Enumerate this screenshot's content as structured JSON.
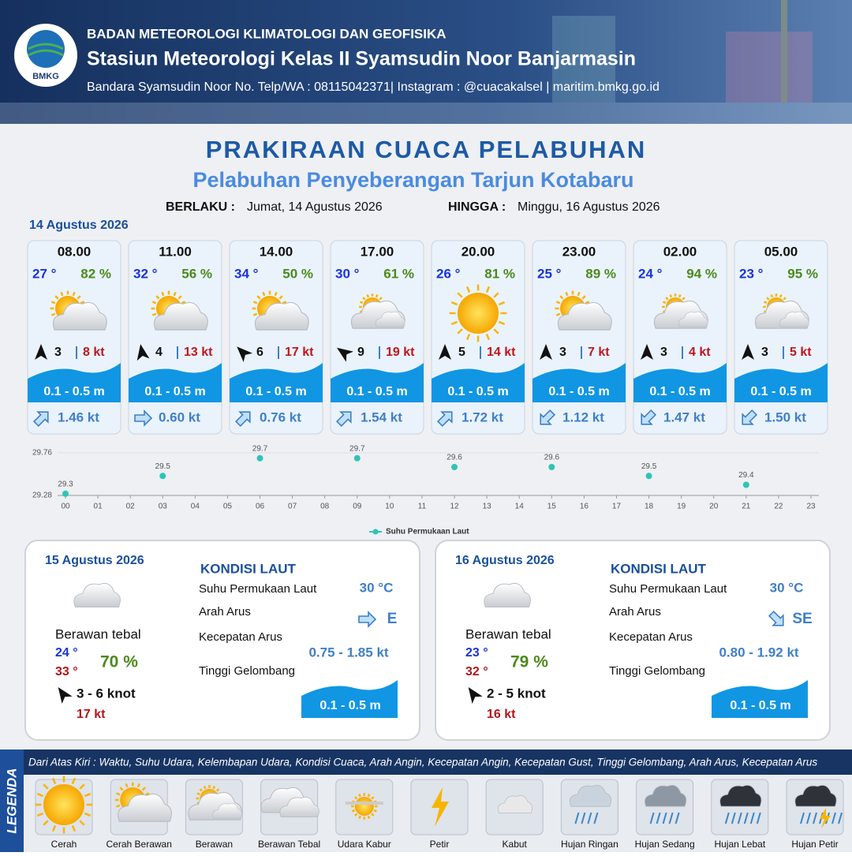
{
  "header": {
    "org": "BADAN METEOROLOGI KLIMATOLOGI DAN GEOFISIKA",
    "station": "Stasiun Meteorologi Kelas II Syamsudin Noor Banjarmasin",
    "contact": "Bandara Syamsudin Noor No. Telp/WA : 08115042371| Instagram : @cuacakalsel | maritim.bmkg.go.id",
    "logo": "BMKG"
  },
  "title": "PRAKIRAAN CUACA PELABUHAN",
  "subtitle": "Pelabuhan Penyeberangan Tarjun Kotabaru",
  "valid_from_label": "BERLAKU :",
  "valid_from": "Jumat, 14 Agustus 2026",
  "valid_to_label": "HINGGA :",
  "valid_to": "Minggu, 16 Agustus 2026",
  "day1_date": "14 Agustus 2026",
  "forecasts": [
    {
      "time": "08.00",
      "temp": "27 °",
      "humidity": "82 %",
      "wind": "3",
      "gust": "8 kt",
      "wave": "0.1 - 0.5 m",
      "current": "1.46 kt"
    },
    {
      "time": "11.00",
      "temp": "32 °",
      "humidity": "56 %",
      "wind": "4",
      "gust": "13 kt",
      "wave": "0.1 - 0.5 m",
      "current": "0.60 kt"
    },
    {
      "time": "14.00",
      "temp": "34 °",
      "humidity": "50 %",
      "wind": "6",
      "gust": "17 kt",
      "wave": "0.1 - 0.5 m",
      "current": "0.76 kt"
    },
    {
      "time": "17.00",
      "temp": "30 °",
      "humidity": "61 %",
      "wind": "9",
      "gust": "19 kt",
      "wave": "0.1 - 0.5 m",
      "current": "1.54 kt"
    },
    {
      "time": "20.00",
      "temp": "26 °",
      "humidity": "81 %",
      "wind": "5",
      "gust": "14 kt",
      "wave": "0.1 - 0.5 m",
      "current": "1.72 kt"
    },
    {
      "time": "23.00",
      "temp": "25 °",
      "humidity": "89 %",
      "wind": "3",
      "gust": "7 kt",
      "wave": "0.1 - 0.5 m",
      "current": "1.12 kt"
    },
    {
      "time": "02.00",
      "temp": "24 °",
      "humidity": "94 %",
      "wind": "3",
      "gust": "4 kt",
      "wave": "0.1 - 0.5 m",
      "current": "1.47 kt"
    },
    {
      "time": "05.00",
      "temp": "23 °",
      "humidity": "95 %",
      "wind": "3",
      "gust": "5 kt",
      "wave": "0.1 - 0.5 m",
      "current": "1.50 kt"
    }
  ],
  "chart_data": {
    "type": "scatter",
    "x": [
      0,
      3,
      6,
      9,
      12,
      15,
      18,
      21
    ],
    "series": [
      {
        "name": "Suhu Permukaan Laut",
        "color": "#2ec4b6",
        "values": [
          29.3,
          29.5,
          29.7,
          29.7,
          29.6,
          29.6,
          29.5,
          29.4
        ]
      }
    ],
    "xlim": [
      0,
      23
    ],
    "ylim": [
      29.28,
      29.76
    ],
    "yticks": [
      29.28,
      29.76
    ],
    "xticks": [
      {
        "value": 0,
        "label": "00"
      },
      {
        "value": 1,
        "label": "01"
      },
      {
        "value": 2,
        "label": "02"
      },
      {
        "value": 3,
        "label": "03"
      },
      {
        "value": 4,
        "label": "04"
      },
      {
        "value": 5,
        "label": "05"
      },
      {
        "value": 6,
        "label": "06"
      },
      {
        "value": 7,
        "label": "07"
      },
      {
        "value": 8,
        "label": "08"
      },
      {
        "value": 9,
        "label": "09"
      },
      10,
      11,
      12,
      13,
      14,
      15,
      16,
      17,
      18,
      19,
      20,
      21,
      22,
      23
    ]
  },
  "days": [
    {
      "date": "15 Agustus 2026",
      "condition": "Berawan tebal",
      "tmin": "24 °",
      "tmax": "33 °",
      "humidity": "70 %",
      "wind": "3 - 6 knot",
      "gust": "17 kt",
      "sea_title": "KONDISI LAUT",
      "sst_label": "Suhu Permukaan Laut",
      "sst": "30 °C",
      "dir_label": "Arah Arus",
      "dir": "E",
      "speed_label": "Kecepatan Arus",
      "speed": "0.75 - 1.85 kt",
      "wave_label": "Tinggi Gelombang",
      "wave": "0.1 - 0.5 m"
    },
    {
      "date": "16 Agustus 2026",
      "condition": "Berawan tebal",
      "tmin": "23 °",
      "tmax": "32 °",
      "humidity": "79 %",
      "wind": "2 - 5 knot",
      "gust": "16 kt",
      "sea_title": "KONDISI LAUT",
      "sst_label": "Suhu Permukaan Laut",
      "sst": "30 °C",
      "dir_label": "Arah Arus",
      "dir": "SE",
      "speed_label": "Kecepatan Arus",
      "speed": "0.80 - 1.92 kt",
      "wave_label": "Tinggi Gelombang",
      "wave": "0.1 - 0.5 m"
    }
  ],
  "legend": {
    "title": "LEGENDA",
    "description": "Dari Atas Kiri : Waktu, Suhu Udara, Kelembapan Udara, Kondisi Cuaca, Arah Angin, Kecepatan Angin, Kecepatan Gust, Tinggi Gelombang, Arah Arus, Kecepatan Arus",
    "items": [
      "Cerah",
      "Cerah Berawan",
      "Berawan",
      "Berawan Tebal",
      "Udara Kabur",
      "Petir",
      "Kabut",
      "Hujan Ringan",
      "Hujan Sedang",
      "Hujan Lebat",
      "Hujan Petir"
    ]
  }
}
